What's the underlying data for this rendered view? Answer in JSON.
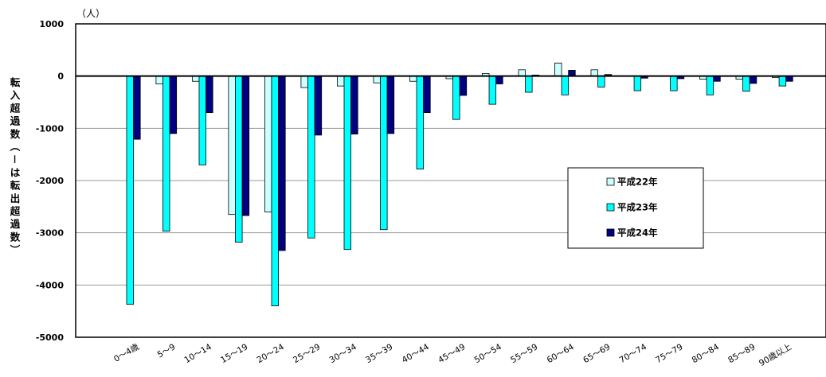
{
  "chart_data": {
    "type": "bar",
    "unit_label": "（人）",
    "ylabel": "転入超過数（－は転出超過数）",
    "ylim": [
      -5000,
      1000
    ],
    "yticks": [
      1000,
      0,
      -1000,
      -2000,
      -3000,
      -4000,
      -5000
    ],
    "grid": true,
    "legend_position": "right",
    "categories": [
      "0～4歳",
      "5～9",
      "10～14",
      "15～19",
      "20～24",
      "25～29",
      "30～34",
      "35～39",
      "40～44",
      "45～49",
      "50～54",
      "55～59",
      "60～64",
      "65～69",
      "70～74",
      "75～79",
      "80～84",
      "85～89",
      "90歳以上"
    ],
    "series": [
      {
        "name": "平成22年",
        "color": "#ccffff",
        "values": [
          0,
          -150,
          -100,
          -2650,
          -2600,
          -220,
          -190,
          -130,
          -100,
          -50,
          50,
          120,
          250,
          120,
          0,
          0,
          -60,
          -60,
          -30
        ]
      },
      {
        "name": "平成23年",
        "color": "#00ffff",
        "values": [
          -4370,
          -2970,
          -1700,
          -3180,
          -4400,
          -3100,
          -3320,
          -2940,
          -1780,
          -830,
          -540,
          -310,
          -360,
          -210,
          -280,
          -280,
          -360,
          -290,
          -190
        ]
      },
      {
        "name": "平成24年",
        "color": "#000080",
        "values": [
          -1210,
          -1100,
          -700,
          -2670,
          -3340,
          -1130,
          -1110,
          -1100,
          -700,
          -370,
          -150,
          20,
          110,
          30,
          -40,
          -50,
          -100,
          -140,
          -100
        ]
      }
    ]
  }
}
